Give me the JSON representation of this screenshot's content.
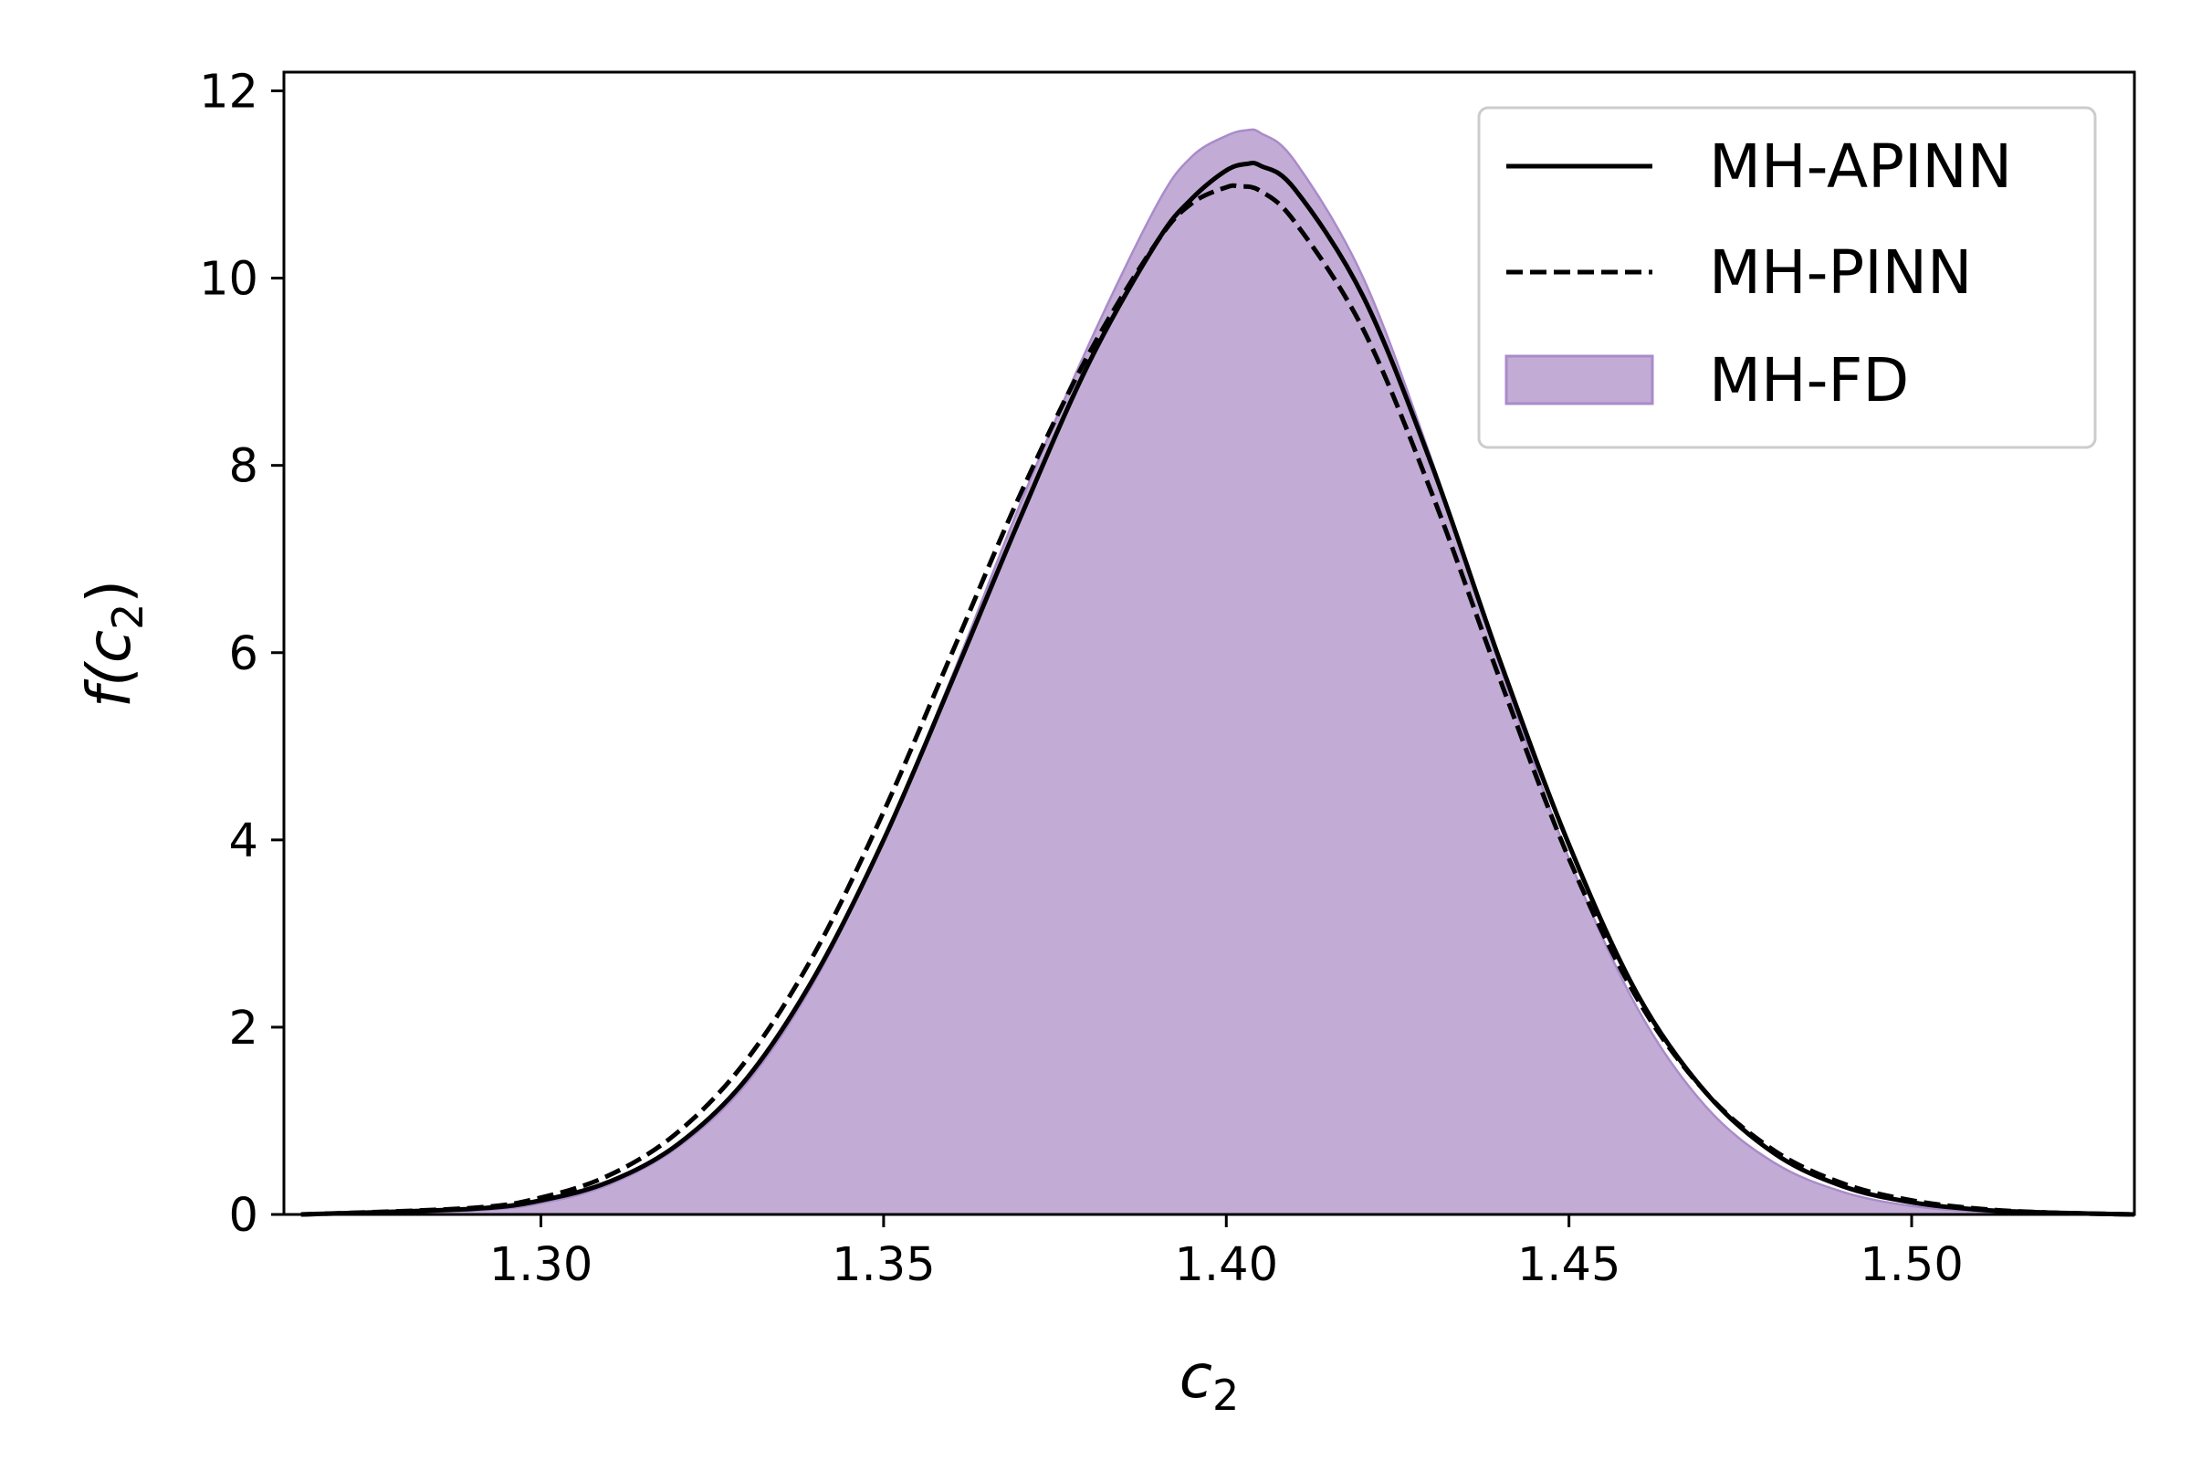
{
  "chart_data": {
    "type": "area",
    "xlabel": {
      "main": "c",
      "sub": "2"
    },
    "ylabel": {
      "pre": "f(",
      "main": "c",
      "sub": "2",
      "post": ")"
    },
    "xlim": [
      1.2625,
      1.5325
    ],
    "ylim": [
      0,
      12.2
    ],
    "xticks": [
      1.3,
      1.35,
      1.4,
      1.45,
      1.5
    ],
    "xtick_labels": [
      "1.30",
      "1.35",
      "1.40",
      "1.45",
      "1.50"
    ],
    "yticks": [
      0,
      2,
      4,
      6,
      8,
      10,
      12
    ],
    "ytick_labels": [
      "0",
      "2",
      "4",
      "6",
      "8",
      "10",
      "12"
    ],
    "grid": false,
    "legend_position": "top-right",
    "series": [
      {
        "name": "MH-APINN",
        "style": "solid",
        "color": "#000000",
        "x": [
          1.265,
          1.29,
          1.3,
          1.31,
          1.32,
          1.33,
          1.34,
          1.35,
          1.36,
          1.37,
          1.38,
          1.39,
          1.395,
          1.4,
          1.403,
          1.405,
          1.41,
          1.42,
          1.43,
          1.44,
          1.45,
          1.46,
          1.47,
          1.48,
          1.49,
          1.5,
          1.51,
          1.52,
          1.5325
        ],
        "y": [
          0.0,
          0.06,
          0.15,
          0.35,
          0.75,
          1.45,
          2.55,
          4.0,
          5.7,
          7.45,
          9.1,
          10.4,
          10.85,
          11.15,
          11.22,
          11.2,
          10.95,
          9.8,
          8.0,
          5.9,
          3.95,
          2.35,
          1.3,
          0.65,
          0.3,
          0.13,
          0.05,
          0.02,
          0.0
        ]
      },
      {
        "name": "MH-PINN",
        "style": "dashed",
        "color": "#000000",
        "x": [
          1.265,
          1.29,
          1.3,
          1.31,
          1.32,
          1.33,
          1.34,
          1.35,
          1.36,
          1.37,
          1.38,
          1.39,
          1.395,
          1.4,
          1.402,
          1.405,
          1.41,
          1.42,
          1.43,
          1.44,
          1.45,
          1.46,
          1.47,
          1.48,
          1.49,
          1.5,
          1.51,
          1.52,
          1.5325
        ],
        "y": [
          0.0,
          0.07,
          0.18,
          0.42,
          0.88,
          1.65,
          2.8,
          4.3,
          6.0,
          7.7,
          9.2,
          10.4,
          10.8,
          10.97,
          10.98,
          10.93,
          10.6,
          9.45,
          7.7,
          5.7,
          3.8,
          2.3,
          1.3,
          0.68,
          0.33,
          0.15,
          0.06,
          0.02,
          0.0
        ]
      },
      {
        "name": "MH-FD",
        "style": "fill",
        "color": "#c2acd6",
        "edge_color": "#a98bc9",
        "x": [
          1.265,
          1.29,
          1.3,
          1.31,
          1.32,
          1.33,
          1.34,
          1.35,
          1.36,
          1.37,
          1.38,
          1.39,
          1.395,
          1.4,
          1.403,
          1.405,
          1.41,
          1.42,
          1.43,
          1.44,
          1.45,
          1.46,
          1.47,
          1.48,
          1.49,
          1.5,
          1.51,
          1.52,
          1.5325
        ],
        "y": [
          0.0,
          0.04,
          0.12,
          0.32,
          0.72,
          1.4,
          2.5,
          4.0,
          5.75,
          7.6,
          9.3,
          10.8,
          11.3,
          11.52,
          11.58,
          11.55,
          11.25,
          10.0,
          8.05,
          5.85,
          3.8,
          2.2,
          1.15,
          0.55,
          0.24,
          0.09,
          0.03,
          0.01,
          0.0
        ]
      }
    ]
  }
}
